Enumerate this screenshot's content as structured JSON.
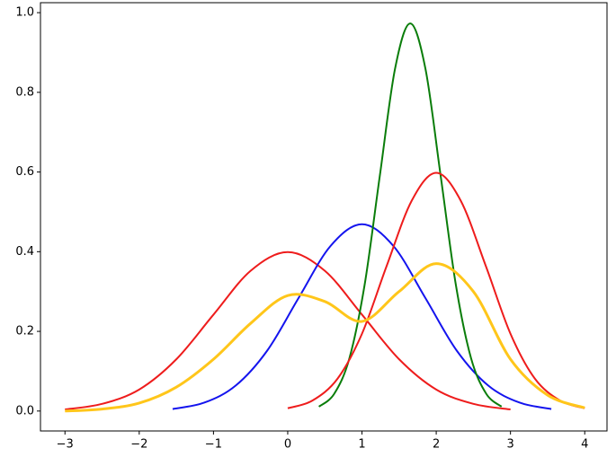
{
  "chart_data": {
    "type": "line",
    "xlim": [
      -3.33,
      4.3
    ],
    "ylim": [
      -0.05,
      1.025
    ],
    "xticks": [
      {
        "value": -3,
        "label": "−3"
      },
      {
        "value": -2,
        "label": "−2"
      },
      {
        "value": -1,
        "label": "−1"
      },
      0,
      1,
      2,
      3,
      4
    ],
    "yticks": [
      {
        "value": 0,
        "label": "0.0"
      },
      0.2,
      0.4,
      0.6,
      0.8,
      {
        "value": 1,
        "label": "1.0"
      }
    ],
    "grid": false,
    "series": [
      {
        "color": "#ee1c1c",
        "x": [
          -3,
          -2.5,
          -2,
          -1.5,
          -1,
          -0.5,
          0,
          0.5,
          1,
          1.5,
          2,
          2.5,
          3
        ],
        "values": [
          0.004,
          0.018,
          0.054,
          0.13,
          0.242,
          0.352,
          0.399,
          0.352,
          0.242,
          0.13,
          0.054,
          0.018,
          0.004
        ]
      },
      {
        "color": "#1414ee",
        "x": [
          -1.55,
          -1.125,
          -0.7,
          -0.275,
          0.15,
          0.575,
          1,
          1.425,
          1.85,
          2.275,
          2.7,
          3.125,
          3.55
        ],
        "values": [
          0.005,
          0.021,
          0.064,
          0.152,
          0.285,
          0.414,
          0.469,
          0.414,
          0.285,
          0.152,
          0.064,
          0.021,
          0.005
        ]
      },
      {
        "color": "#0a7d0a",
        "x": [
          0.42,
          0.625,
          0.83,
          1.035,
          1.24,
          1.445,
          1.65,
          1.855,
          2.06,
          2.265,
          2.47,
          2.675,
          2.88
        ],
        "values": [
          0.011,
          0.043,
          0.132,
          0.316,
          0.59,
          0.859,
          0.973,
          0.859,
          0.59,
          0.316,
          0.132,
          0.043,
          0.011
        ]
      },
      {
        "color": "#ee1c1c",
        "x": [
          0,
          0.33,
          0.67,
          1,
          1.33,
          1.67,
          2,
          2.33,
          2.67,
          3,
          3.33,
          3.67,
          4
        ],
        "values": [
          0.007,
          0.026,
          0.081,
          0.194,
          0.363,
          0.528,
          0.598,
          0.528,
          0.363,
          0.194,
          0.081,
          0.026,
          0.007
        ]
      },
      {
        "color": "#ffc61a",
        "x": [
          -3,
          -2.5,
          -2,
          -1.5,
          -1,
          -0.5,
          0,
          0.5,
          1,
          1.5,
          2,
          2.5,
          3,
          3.5,
          4
        ],
        "values": [
          0.0,
          0.005,
          0.02,
          0.06,
          0.13,
          0.22,
          0.29,
          0.275,
          0.225,
          0.3,
          0.37,
          0.3,
          0.13,
          0.04,
          0.008
        ]
      }
    ]
  }
}
